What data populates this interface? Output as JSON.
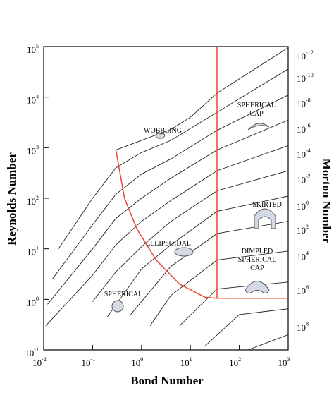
{
  "chart_data": {
    "type": "line",
    "title": "",
    "xlabel": "Bond Number",
    "ylabel": "Reynolds  Number",
    "y2label": "Morton  Number",
    "x_scale": "log",
    "y_scale": "log",
    "xlim": [
      0.01,
      1000
    ],
    "ylim": [
      0.1,
      100000
    ],
    "grid": false,
    "x_ticks": [
      {
        "value": 0.01,
        "base": "10",
        "exp": "-2"
      },
      {
        "value": 0.1,
        "base": "10",
        "exp": "-1"
      },
      {
        "value": 1,
        "base": "10",
        "exp": "0"
      },
      {
        "value": 10,
        "base": "10",
        "exp": "1"
      },
      {
        "value": 100,
        "base": "10",
        "exp": "2"
      },
      {
        "value": 1000,
        "base": "10",
        "exp": "3"
      }
    ],
    "y_ticks": [
      {
        "value": 0.1,
        "base": "10",
        "exp": "-1"
      },
      {
        "value": 1,
        "base": "10",
        "exp": "0"
      },
      {
        "value": 10,
        "base": "10",
        "exp": "1"
      },
      {
        "value": 100,
        "base": "10",
        "exp": "2"
      },
      {
        "value": 1000,
        "base": "10",
        "exp": "3"
      },
      {
        "value": 10000,
        "base": "10",
        "exp": "4"
      },
      {
        "value": 100000,
        "base": "10",
        "exp": "5"
      }
    ],
    "morton_ticks": [
      {
        "re": 70000,
        "base": "10",
        "exp": "-12"
      },
      {
        "re": 25000,
        "base": "10",
        "exp": "-10"
      },
      {
        "re": 8000,
        "base": "10",
        "exp": "-8"
      },
      {
        "re": 2500,
        "base": "10",
        "exp": "-6"
      },
      {
        "re": 800,
        "base": "10",
        "exp": "-4"
      },
      {
        "re": 250,
        "base": "10",
        "exp": "-2"
      },
      {
        "re": 75,
        "base": "10",
        "exp": "0"
      },
      {
        "re": 25,
        "base": "10",
        "exp": "2"
      },
      {
        "re": 7.5,
        "base": "10",
        "exp": "4"
      },
      {
        "re": 1.6,
        "base": "10",
        "exp": "6"
      },
      {
        "re": 0.3,
        "base": "10",
        "exp": "8"
      }
    ],
    "morton_curves": [
      {
        "points": [
          [
            0.3,
            900
          ],
          [
            1,
            1400
          ],
          [
            4,
            2300
          ],
          [
            10,
            4000
          ],
          [
            35,
            12000
          ],
          [
            1000,
            95000
          ]
        ]
      },
      {
        "points": [
          [
            0.02,
            10
          ],
          [
            0.1,
            100
          ],
          [
            0.3,
            400
          ],
          [
            1,
            800
          ],
          [
            4,
            1400
          ],
          [
            35,
            5000
          ],
          [
            1000,
            36000
          ]
        ]
      },
      {
        "points": [
          [
            0.015,
            2.5
          ],
          [
            0.1,
            30
          ],
          [
            0.3,
            120
          ],
          [
            1,
            300
          ],
          [
            4,
            600
          ],
          [
            35,
            2200
          ],
          [
            1000,
            11000
          ]
        ]
      },
      {
        "points": [
          [
            0.012,
            0.8
          ],
          [
            0.1,
            10
          ],
          [
            0.3,
            40
          ],
          [
            1,
            100
          ],
          [
            4,
            250
          ],
          [
            35,
            900
          ],
          [
            1000,
            3500
          ]
        ]
      },
      {
        "points": [
          [
            0.011,
            0.3
          ],
          [
            0.1,
            3
          ],
          [
            0.3,
            12
          ],
          [
            1,
            35
          ],
          [
            4,
            90
          ],
          [
            35,
            350
          ],
          [
            1000,
            1100
          ]
        ]
      },
      {
        "points": [
          [
            0.1,
            0.9
          ],
          [
            0.3,
            3.5
          ],
          [
            1,
            11
          ],
          [
            4,
            35
          ],
          [
            35,
            140
          ],
          [
            1000,
            350
          ]
        ]
      },
      {
        "points": [
          [
            0.2,
            0.45
          ],
          [
            1,
            4
          ],
          [
            4,
            12
          ],
          [
            35,
            55
          ],
          [
            1000,
            110
          ]
        ]
      },
      {
        "points": [
          [
            0.6,
            0.5
          ],
          [
            4,
            4.5
          ],
          [
            35,
            20
          ],
          [
            1000,
            35
          ]
        ]
      },
      {
        "points": [
          [
            1.5,
            0.3
          ],
          [
            4,
            1.2
          ],
          [
            35,
            6
          ],
          [
            1000,
            9
          ]
        ]
      },
      {
        "points": [
          [
            6,
            0.3
          ],
          [
            35,
            1.6
          ],
          [
            1000,
            2.2
          ]
        ]
      },
      {
        "points": [
          [
            20,
            0.12
          ],
          [
            100,
            0.5
          ],
          [
            1000,
            0.65
          ]
        ]
      },
      {
        "points": [
          [
            150,
            0.1
          ],
          [
            1000,
            0.2
          ]
        ]
      }
    ],
    "regime_boundaries": [
      {
        "name": "",
        "points": [
          [
            0.3,
            900
          ],
          [
            0.45,
            100
          ],
          [
            0.8,
            25
          ],
          [
            2,
            6
          ],
          [
            6,
            2
          ],
          [
            20,
            1.1
          ],
          [
            35,
            1.05
          ]
        ]
      },
      {
        "name": "",
        "points": [
          [
            35,
            100000
          ],
          [
            35,
            1.05
          ]
        ]
      },
      {
        "name": "",
        "points": [
          [
            35,
            1.05
          ],
          [
            1000,
            1.05
          ]
        ]
      }
    ],
    "regions": [
      {
        "lines": [
          "WOBBLING"
        ]
      },
      {
        "lines": [
          "SPHERICAL",
          "CAP"
        ]
      },
      {
        "lines": [
          "SKIRTED"
        ]
      },
      {
        "lines": [
          "ELLIPSOIDAL"
        ]
      },
      {
        "lines": [
          "DIMPLED",
          "SPHERICAL",
          "CAP"
        ]
      },
      {
        "lines": [
          "SPHERICAL"
        ]
      }
    ],
    "colors": {
      "curves": "#222222",
      "boundary": "#e8472c",
      "bubble_fill": "#d3dae6",
      "bubble_stroke": "#555555"
    }
  }
}
